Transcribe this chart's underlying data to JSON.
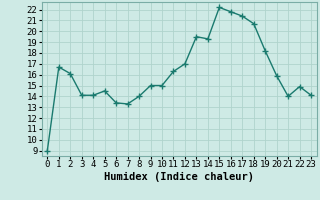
{
  "x": [
    0,
    1,
    2,
    3,
    4,
    5,
    6,
    7,
    8,
    9,
    10,
    11,
    12,
    13,
    14,
    15,
    16,
    17,
    18,
    19,
    20,
    21,
    22,
    23
  ],
  "y": [
    9,
    16.7,
    16.1,
    14.1,
    14.1,
    14.5,
    13.4,
    13.3,
    14.0,
    15.0,
    15.0,
    16.3,
    17.0,
    19.5,
    19.3,
    22.2,
    21.8,
    21.4,
    20.7,
    18.2,
    15.9,
    14.0,
    14.9,
    14.1
  ],
  "line_color": "#1a7a6e",
  "marker": "+",
  "marker_size": 4,
  "marker_linewidth": 1.0,
  "line_width": 1.0,
  "bg_color": "#ceeae5",
  "grid_color_major": "#b0d4cc",
  "grid_color_minor": "#ddf0ec",
  "xlabel": "Humidex (Indice chaleur)",
  "xlabel_fontsize": 7.5,
  "ylabel_ticks": [
    9,
    10,
    11,
    12,
    13,
    14,
    15,
    16,
    17,
    18,
    19,
    20,
    21,
    22
  ],
  "ylim": [
    8.5,
    22.7
  ],
  "xlim": [
    -0.5,
    23.5
  ],
  "xtick_labels": [
    "0",
    "1",
    "2",
    "3",
    "4",
    "5",
    "6",
    "7",
    "8",
    "9",
    "10",
    "11",
    "12",
    "13",
    "14",
    "15",
    "16",
    "17",
    "18",
    "19",
    "20",
    "21",
    "22",
    "23"
  ],
  "tick_fontsize": 6.5
}
